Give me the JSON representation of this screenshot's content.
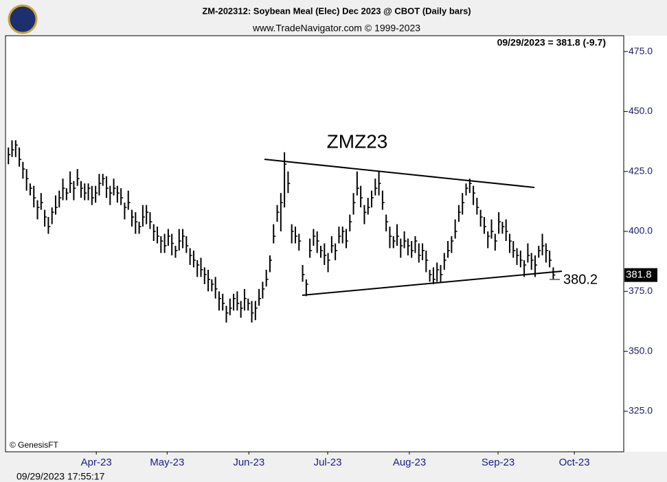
{
  "chart_data": {
    "type": "ohlc",
    "title": "ZM-202312:  Soybean Meal (Elec) Dec 2023 @ CBOT  (Daily bars)",
    "subtitle": "www.TradeNavigator.com © 1999-2023",
    "header_note": "09/29/2023 = 381.8 (-9.7)",
    "pattern_label": "ZMZ23",
    "support_label": "380.2",
    "last_price": {
      "value": 381.8,
      "label": "381.8"
    },
    "credit": "© GenesisFT",
    "timestamp": "09/29/2023 17:55:17",
    "color": "#000000",
    "high": [
      435,
      438,
      438,
      435,
      429,
      426,
      420,
      419,
      413,
      416,
      409,
      406,
      410,
      415,
      417,
      422,
      418,
      425,
      421,
      426,
      421,
      420,
      420,
      419,
      419,
      424,
      424,
      423,
      419,
      422,
      419,
      418,
      412,
      417,
      409,
      408,
      404,
      411,
      411,
      408,
      403,
      402,
      398,
      399,
      401,
      399,
      394,
      401,
      401,
      398,
      393,
      392,
      388,
      389,
      385,
      384,
      380,
      381,
      375,
      374,
      369,
      372,
      374,
      375,
      371,
      376,
      372,
      371,
      371,
      376,
      379,
      384,
      390,
      403,
      411,
      416,
      433,
      425,
      403,
      402,
      399,
      386,
      380,
      397,
      401,
      400,
      394,
      395,
      391,
      398,
      395,
      402,
      402,
      401,
      407,
      416,
      425,
      419,
      411,
      414,
      417,
      422,
      425,
      417,
      407,
      402,
      398,
      403,
      397,
      400,
      397,
      396,
      398,
      395,
      395,
      392,
      384,
      385,
      387,
      386,
      391,
      396,
      398,
      405,
      411,
      416,
      420,
      422,
      419,
      414,
      409,
      406,
      400,
      405,
      399,
      408,
      404,
      405,
      399,
      396,
      393,
      392,
      388,
      395,
      391,
      390,
      394,
      399,
      395,
      392,
      385
    ],
    "low": [
      428,
      431,
      431,
      427,
      422,
      417,
      415,
      410,
      405,
      409,
      402,
      399,
      403,
      407,
      410,
      413,
      413,
      416,
      413,
      419,
      414,
      413,
      413,
      411,
      412,
      415,
      419,
      414,
      411,
      415,
      412,
      411,
      405,
      409,
      402,
      399,
      399,
      402,
      403,
      401,
      396,
      395,
      391,
      391,
      394,
      390,
      389,
      392,
      393,
      391,
      386,
      385,
      381,
      381,
      378,
      375,
      375,
      372,
      367,
      367,
      362,
      365,
      367,
      367,
      364,
      367,
      367,
      362,
      363,
      369,
      372,
      377,
      383,
      395,
      404,
      400,
      410,
      416,
      395,
      395,
      392,
      379,
      373,
      389,
      394,
      391,
      389,
      386,
      383,
      391,
      388,
      395,
      395,
      393,
      400,
      407,
      415,
      410,
      403,
      407,
      410,
      415,
      415,
      409,
      400,
      393,
      393,
      394,
      389,
      393,
      390,
      389,
      391,
      387,
      388,
      383,
      379,
      378,
      379,
      379,
      384,
      389,
      391,
      397,
      404,
      407,
      415,
      416,
      411,
      407,
      402,
      399,
      393,
      397,
      392,
      399,
      399,
      396,
      391,
      389,
      386,
      385,
      381,
      387,
      384,
      381,
      389,
      390,
      387,
      385,
      380.2
    ],
    "close": [
      432,
      434,
      436,
      430,
      426,
      422,
      418,
      414,
      410,
      412,
      406,
      402,
      408,
      410,
      414,
      418,
      416,
      420,
      418,
      422,
      418,
      416,
      418,
      414,
      416,
      420,
      422,
      418,
      416,
      418,
      416,
      414,
      410,
      412,
      406,
      404,
      402,
      406,
      408,
      404,
      400,
      398,
      396,
      394,
      398,
      395,
      392,
      396,
      398,
      394,
      390,
      388,
      386,
      384,
      382,
      380,
      378,
      376,
      372,
      370,
      366,
      368,
      372,
      370,
      368,
      372,
      370,
      366,
      368,
      372,
      376,
      380,
      388,
      398,
      408,
      412,
      428,
      420,
      400,
      398,
      396,
      382,
      378,
      392,
      398,
      396,
      392,
      390,
      388,
      394,
      392,
      398,
      400,
      396,
      404,
      412,
      418,
      414,
      408,
      410,
      414,
      418,
      420,
      412,
      404,
      398,
      396,
      398,
      394,
      396,
      394,
      392,
      396,
      390,
      392,
      388,
      382,
      380,
      384,
      382,
      388,
      392,
      396,
      400,
      408,
      412,
      418,
      420,
      416,
      410,
      406,
      402,
      398,
      400,
      396,
      404,
      402,
      400,
      396,
      392,
      390,
      388,
      386,
      390,
      388,
      386,
      392,
      394,
      392,
      388,
      381.8
    ],
    "xlim": [
      -0.8,
      169.4
    ],
    "xticks": [
      {
        "value": 24.2,
        "label": "Apr-23"
      },
      {
        "value": 43.7,
        "label": "May-23"
      },
      {
        "value": 66.2,
        "label": "Jun-23"
      },
      {
        "value": 87.9,
        "label": "Jul-23"
      },
      {
        "value": 110.4,
        "label": "Aug-23"
      },
      {
        "value": 134.8,
        "label": "Sep-23"
      },
      {
        "value": 155.8,
        "label": "Oct-23"
      }
    ],
    "ylim": [
      308.1,
      481.6
    ],
    "yticks": [
      {
        "value": 325,
        "label": "325.0"
      },
      {
        "value": 350,
        "label": "350.0"
      },
      {
        "value": 375,
        "label": "375.0"
      },
      {
        "value": 400,
        "label": "400.0"
      },
      {
        "value": 425,
        "label": "425.0"
      },
      {
        "value": 450,
        "label": "450.0"
      },
      {
        "value": 475,
        "label": "475.0"
      }
    ]
  }
}
